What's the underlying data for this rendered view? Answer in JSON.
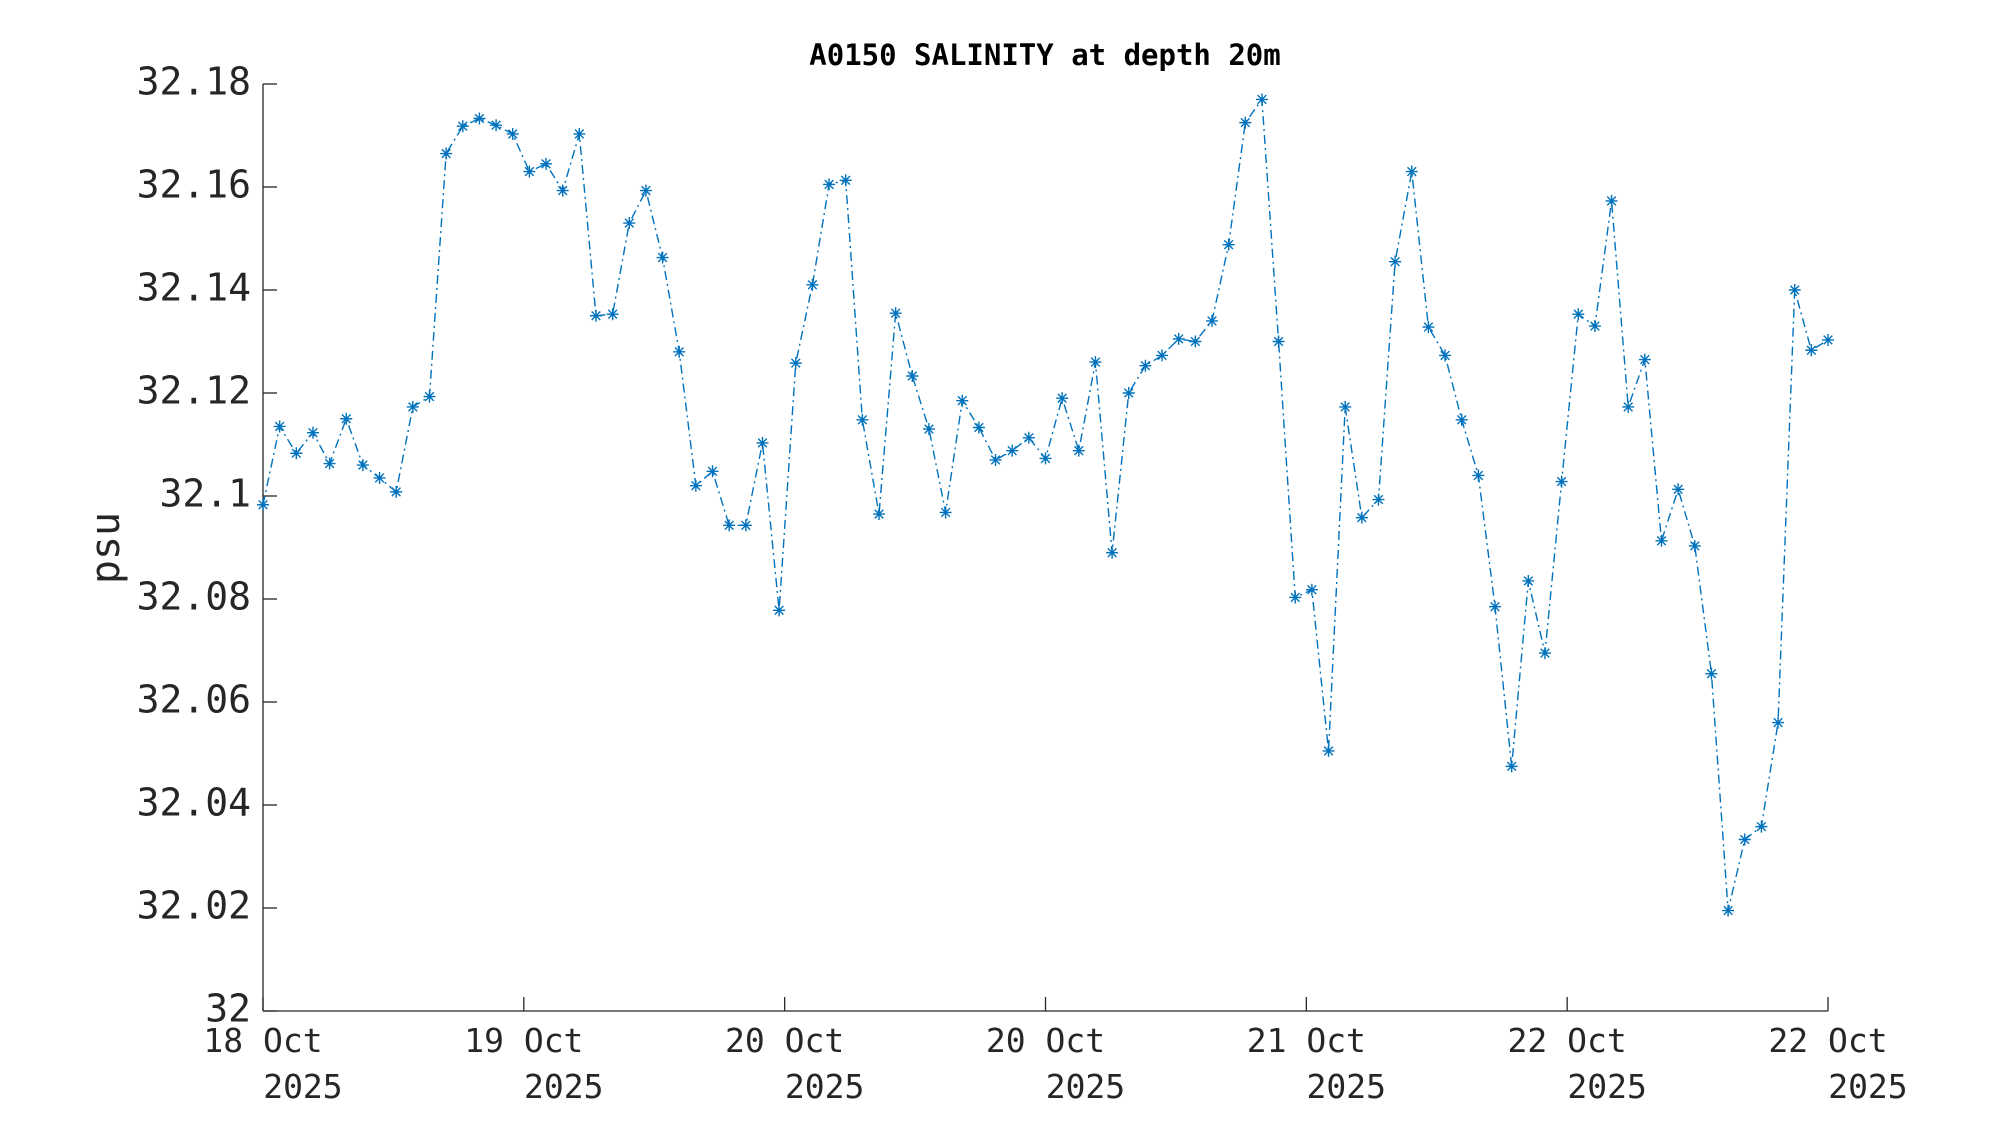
{
  "chart_data": {
    "type": "line",
    "title": "A0150 SALINITY at depth 20m",
    "ylabel": "psu",
    "x": [
      0,
      1,
      2,
      3,
      4,
      5,
      6,
      7,
      8,
      9,
      10,
      11,
      12,
      13,
      14,
      15,
      16,
      17,
      18,
      19,
      20,
      21,
      22,
      23,
      24,
      25,
      26,
      27,
      28,
      29,
      30,
      31,
      32,
      33,
      34,
      35,
      36,
      37,
      38,
      39,
      40,
      41,
      42,
      43,
      44,
      45,
      46,
      47,
      48,
      49,
      50,
      51,
      52,
      53,
      54,
      55,
      56,
      57,
      58,
      59,
      60,
      61,
      62,
      63,
      64,
      65,
      66,
      67,
      68,
      69,
      70,
      71,
      72,
      73,
      74,
      75,
      76,
      77,
      78,
      79,
      80,
      81,
      82,
      83,
      84,
      85,
      86,
      87,
      88,
      89,
      90,
      91,
      92,
      93,
      94
    ],
    "series": [
      {
        "name": "SALINITY",
        "color": "#0072bd",
        "values": [
          32.0983,
          32.1135,
          32.1083,
          32.1123,
          32.1063,
          32.115,
          32.106,
          32.1035,
          32.1008,
          32.1173,
          32.1193,
          32.1665,
          32.1718,
          32.1733,
          32.172,
          32.1703,
          32.163,
          32.1645,
          32.1593,
          32.1703,
          32.135,
          32.1353,
          32.153,
          32.1593,
          32.1463,
          32.128,
          32.102,
          32.1048,
          32.0943,
          32.0943,
          32.1103,
          32.0778,
          32.1258,
          32.141,
          32.1605,
          32.1613,
          32.1148,
          32.0965,
          32.1355,
          32.1233,
          32.113,
          32.0968,
          32.1185,
          32.1133,
          32.107,
          32.1088,
          32.1113,
          32.1073,
          32.119,
          32.1088,
          32.126,
          32.089,
          32.12,
          32.1253,
          32.1273,
          32.1305,
          32.13,
          32.134,
          32.1488,
          32.1725,
          32.177,
          32.13,
          32.0803,
          32.0818,
          32.0505,
          32.1173,
          32.0958,
          32.0993,
          32.1455,
          32.163,
          32.1328,
          32.1273,
          32.1148,
          32.104,
          32.0785,
          32.0475,
          32.0835,
          32.0695,
          32.1028,
          32.1353,
          32.133,
          32.1573,
          32.1173,
          32.1265,
          32.0913,
          32.1013,
          32.0903,
          32.0655,
          32.0195,
          32.0333,
          32.0358,
          32.056,
          32.14,
          32.1283,
          32.1303
        ]
      }
    ],
    "xlim": [
      0,
      94
    ],
    "xticks": [
      {
        "value": 0,
        "label": "18 Oct 2025"
      },
      {
        "value": 15.6667,
        "label": "19 Oct 2025"
      },
      {
        "value": 31.3333,
        "label": "20 Oct 2025"
      },
      {
        "value": 47,
        "label": "20 Oct 2025"
      },
      {
        "value": 62.6667,
        "label": "21 Oct 2025"
      },
      {
        "value": 78.3333,
        "label": "22 Oct 2025"
      },
      {
        "value": 94,
        "label": "22 Oct 2025"
      }
    ],
    "ylim": [
      32,
      32.18
    ],
    "yticks": [
      32,
      32.02,
      32.04,
      32.06,
      32.08,
      32.1,
      32.12,
      32.14,
      32.16,
      32.18
    ],
    "grid": false
  }
}
